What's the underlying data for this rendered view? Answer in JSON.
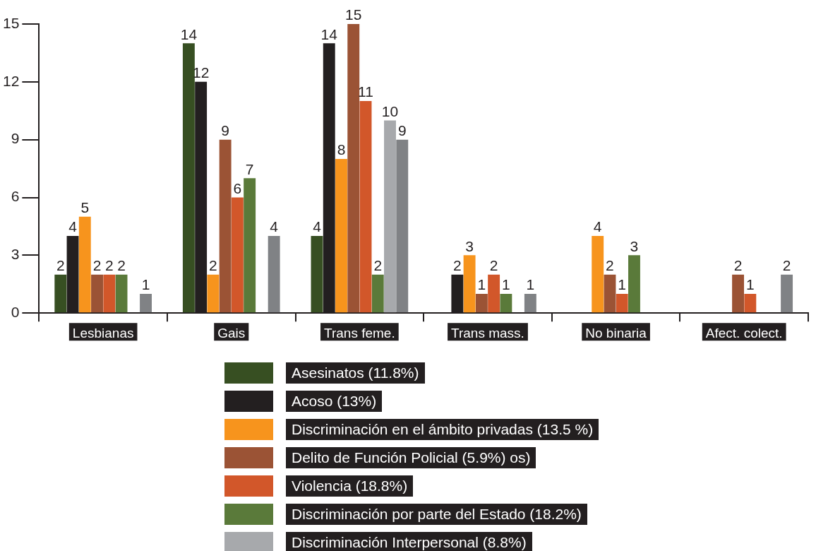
{
  "chart_data": {
    "type": "bar",
    "categories": [
      "Lesbianas",
      "Gais",
      "Trans feme.",
      "Trans mass.",
      "No binaria",
      "Afect. colect."
    ],
    "series": [
      {
        "name": "Asesinatos (11.8%)",
        "color": "#374f22",
        "values": [
          2,
          14,
          4,
          null,
          null,
          null
        ]
      },
      {
        "name": "Acoso (13%)",
        "color": "#231f20",
        "values": [
          4,
          12,
          14,
          2,
          null,
          null
        ]
      },
      {
        "name": "Discriminación en el ámbito privadas (13.5 %)",
        "color": "#f7941d",
        "values": [
          5,
          2,
          8,
          3,
          4,
          null
        ]
      },
      {
        "name": "Delito de Función Policial (5.9%) os)",
        "color": "#9b5335",
        "values": [
          2,
          9,
          15,
          1,
          2,
          2
        ]
      },
      {
        "name": "Violencia (18.8%)",
        "color": "#d2572a",
        "values": [
          2,
          6,
          11,
          2,
          1,
          1
        ]
      },
      {
        "name": "Discriminación por parte del Estado (18.2%)",
        "color": "#5a7a3a",
        "values": [
          2,
          7,
          2,
          1,
          3,
          null
        ]
      },
      {
        "name": "Discriminación Interpersonal (8.8%)",
        "color": "#a7a9ac",
        "values": [
          null,
          null,
          10,
          null,
          null,
          null
        ]
      },
      {
        "color": "#808285",
        "values": [
          1,
          4,
          9,
          1,
          null,
          2
        ]
      }
    ],
    "ylim": [
      0,
      15
    ],
    "yticks": [
      0,
      3,
      6,
      9,
      12,
      15
    ],
    "grid": false,
    "legend": "bottom",
    "data_labels": true
  }
}
